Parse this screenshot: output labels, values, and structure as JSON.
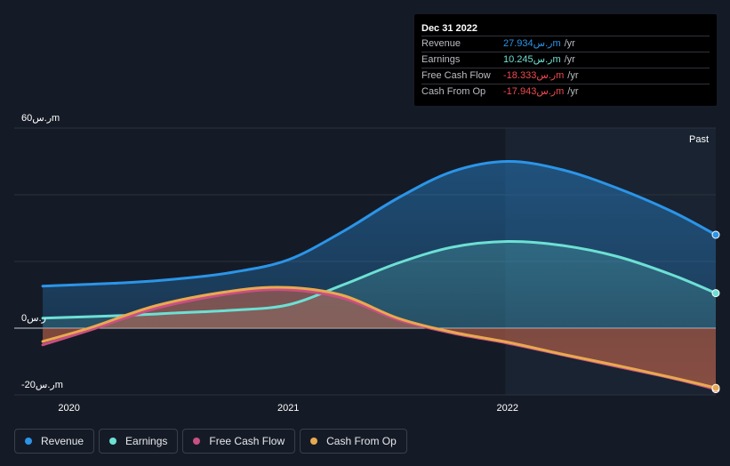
{
  "tooltip": {
    "date": "Dec 31 2022",
    "rows": [
      {
        "label": "Revenue",
        "value": "27.934ر.سm",
        "unit": "/yr",
        "color": "#2b95e8"
      },
      {
        "label": "Earnings",
        "value": "10.245ر.سm",
        "unit": "/yr",
        "color": "#6de0d4"
      },
      {
        "label": "Free Cash Flow",
        "value": "-18.333ر.سm",
        "unit": "/yr",
        "color": "#ef4a4e"
      },
      {
        "label": "Cash From Op",
        "value": "-17.943ر.سm",
        "unit": "/yr",
        "color": "#ef4a4e"
      }
    ]
  },
  "past_label": "Past",
  "legend": [
    {
      "label": "Revenue",
      "color": "#2b95e8"
    },
    {
      "label": "Earnings",
      "color": "#6de0d4"
    },
    {
      "label": "Free Cash Flow",
      "color": "#c94f83"
    },
    {
      "label": "Cash From Op",
      "color": "#e9a94f"
    }
  ],
  "chart_data": {
    "type": "area",
    "ylim": [
      -20,
      60
    ],
    "y_tick_labels": [
      {
        "value": 60,
        "label": "60ر.سm"
      },
      {
        "value": 0,
        "label": "0ر.س"
      },
      {
        "value": -20,
        "label": "-20ر.سm"
      }
    ],
    "x_ticks": [
      {
        "value": 2020.0,
        "label": "2020"
      },
      {
        "value": 2021.0,
        "label": "2021"
      },
      {
        "value": 2022.0,
        "label": "2022"
      }
    ],
    "xlim": [
      2019.75,
      2022.95
    ],
    "highlight_from": 2021.99,
    "series": [
      {
        "name": "Revenue",
        "color": "#2b95e8",
        "x": [
          2019.88,
          2020.25,
          2020.5,
          2020.75,
          2021.0,
          2021.25,
          2021.5,
          2021.75,
          2022.0,
          2022.25,
          2022.5,
          2022.75,
          2022.95
        ],
        "values": [
          12.6,
          13.6,
          14.8,
          16.8,
          20.5,
          29.0,
          39.0,
          47.0,
          50.0,
          47.5,
          42.0,
          35.0,
          28.0
        ]
      },
      {
        "name": "Earnings",
        "color": "#6de0d4",
        "x": [
          2019.88,
          2020.25,
          2020.5,
          2020.75,
          2021.0,
          2021.25,
          2021.5,
          2021.75,
          2022.0,
          2022.25,
          2022.5,
          2022.75,
          2022.95
        ],
        "values": [
          3.0,
          3.8,
          4.6,
          5.4,
          7.0,
          13.0,
          19.5,
          24.3,
          26.0,
          24.8,
          21.5,
          16.0,
          10.5
        ]
      },
      {
        "name": "Free Cash Flow",
        "color": "#c94f83",
        "x": [
          2019.88,
          2020.1,
          2020.4,
          2020.75,
          2021.0,
          2021.25,
          2021.5,
          2021.75,
          2022.0,
          2022.25,
          2022.5,
          2022.75,
          2022.95
        ],
        "values": [
          -5.0,
          -0.5,
          6.0,
          10.5,
          11.5,
          9.0,
          2.5,
          -1.5,
          -4.5,
          -8.0,
          -11.5,
          -15.0,
          -18.3
        ]
      },
      {
        "name": "Cash From Op",
        "color": "#e9a94f",
        "x": [
          2019.88,
          2020.1,
          2020.4,
          2020.75,
          2021.0,
          2021.25,
          2021.5,
          2021.75,
          2022.0,
          2022.25,
          2022.5,
          2022.75,
          2022.95
        ],
        "values": [
          -4.0,
          0.2,
          6.8,
          11.2,
          12.2,
          9.8,
          3.0,
          -1.2,
          -4.2,
          -7.8,
          -11.2,
          -14.8,
          -17.9
        ]
      }
    ]
  }
}
